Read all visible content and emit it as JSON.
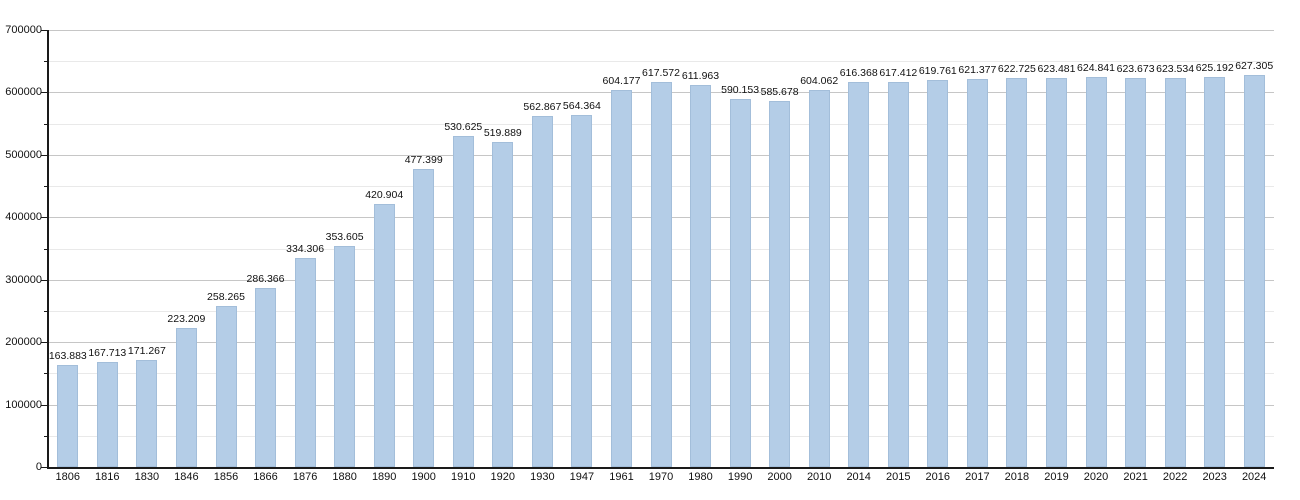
{
  "chart_data": {
    "type": "bar",
    "title": "",
    "xlabel": "",
    "ylabel": "",
    "categories": [
      "1806",
      "1816",
      "1830",
      "1846",
      "1856",
      "1866",
      "1876",
      "1880",
      "1890",
      "1900",
      "1910",
      "1920",
      "1930",
      "1947",
      "1961",
      "1970",
      "1980",
      "1990",
      "2000",
      "2010",
      "2014",
      "2015",
      "2016",
      "2017",
      "2018",
      "2019",
      "2020",
      "2021",
      "2022",
      "2023",
      "2024"
    ],
    "values": [
      163883,
      167713,
      171267,
      223209,
      258265,
      286366,
      334306,
      353605,
      420904,
      477399,
      530625,
      519889,
      562867,
      564364,
      604177,
      617572,
      611963,
      590153,
      585678,
      604062,
      616368,
      617412,
      619761,
      621377,
      622725,
      623481,
      624841,
      623673,
      623534,
      625192,
      627305
    ],
    "value_labels": [
      "163.883",
      "167.713",
      "171.267",
      "223.209",
      "258.265",
      "286.366",
      "334.306",
      "353.605",
      "420.904",
      "477.399",
      "530.625",
      "519.889",
      "562.867",
      "564.364",
      "604.177",
      "617.572",
      "611.963",
      "590.153",
      "585.678",
      "604.062",
      "616.368",
      "617.412",
      "619.761",
      "621.377",
      "622.725",
      "623.481",
      "624.841",
      "623.673",
      "623.534",
      "625.192",
      "627.305"
    ],
    "ylim": [
      0,
      700000
    ],
    "y_major_step": 100000,
    "y_minor_step": 50000,
    "y_tick_labels": [
      "0",
      "100000",
      "200000",
      "300000",
      "400000",
      "500000",
      "600000",
      "700000"
    ],
    "grid": true,
    "legend_position": "none",
    "colors": {
      "bar_fill": "#b4cde7",
      "gridline_major": "#c6c6c6",
      "gridline_minor": "#e9e9e9",
      "axis": "#1a1a1a",
      "text": "#111111",
      "background": "#ffffff"
    }
  }
}
